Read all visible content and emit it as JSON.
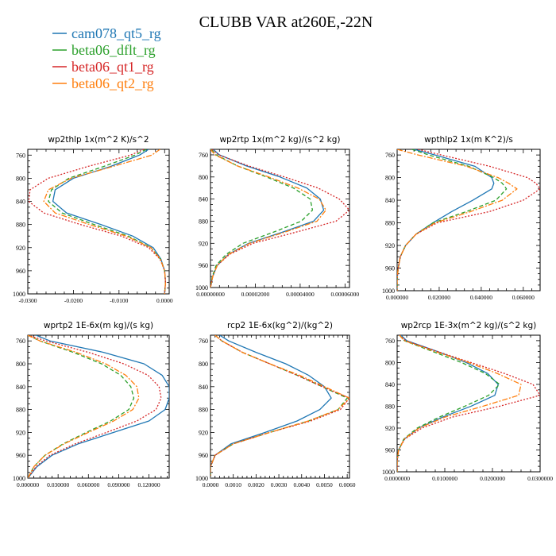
{
  "figure": {
    "title": "CLUBB VAR at260E,-22N",
    "legend": [
      {
        "name": "cam078_qt5_rg",
        "color": "#1f77b4",
        "dash": "solid"
      },
      {
        "name": "beta06_dflt_rg",
        "color": "#2ca02c",
        "dash": "dashed"
      },
      {
        "name": "beta06_qt1_rg",
        "color": "#d62728",
        "dash": "dotted"
      },
      {
        "name": "beta06_qt2_rg",
        "color": "#ff7f0e",
        "dash": "dashdot"
      }
    ]
  },
  "chart_data": [
    {
      "type": "line",
      "title": "wp2thlp   1x(m^2 K)/s^2",
      "xlim": [
        -0.03,
        0.001
      ],
      "ylim": [
        1000,
        750
      ],
      "xticks": [
        -0.03,
        -0.02,
        -0.01,
        0.0
      ],
      "xtick_labels": [
        "-0.0300",
        "-0.0200",
        "-0.0100",
        "0.0000"
      ],
      "yticks": [
        760,
        800,
        840,
        880,
        920,
        960,
        1000
      ],
      "ytick_labels": [
        "760",
        "800",
        "840",
        "880",
        "920",
        "960",
        "1000"
      ],
      "y": [
        750,
        760,
        780,
        800,
        820,
        840,
        860,
        880,
        900,
        920,
        940,
        960,
        980,
        1000
      ],
      "series": [
        {
          "values": [
            -0.0035,
            -0.0055,
            -0.012,
            -0.02,
            -0.024,
            -0.0245,
            -0.0215,
            -0.014,
            -0.007,
            -0.0025,
            -0.0008,
            0.0,
            0.0002,
            0.0
          ]
        },
        {
          "values": [
            -0.004,
            -0.0065,
            -0.0135,
            -0.021,
            -0.0248,
            -0.0255,
            -0.0225,
            -0.0155,
            -0.008,
            -0.003,
            -0.0009,
            0.0,
            0.0002,
            0.0
          ]
        },
        {
          "values": [
            -0.0045,
            -0.0075,
            -0.017,
            -0.0255,
            -0.0295,
            -0.0298,
            -0.0265,
            -0.0185,
            -0.0095,
            -0.0035,
            -0.001,
            0.0,
            0.0002,
            0.0
          ]
        },
        {
          "values": [
            -0.001,
            -0.0028,
            -0.0115,
            -0.0205,
            -0.0255,
            -0.0265,
            -0.024,
            -0.0165,
            -0.0085,
            -0.003,
            -0.0009,
            0.0,
            0.0002,
            0.0
          ]
        }
      ]
    },
    {
      "type": "line",
      "title": "wp2rtp   1x(m^2 kg)/(s^2 kg)",
      "xlim": [
        0.0,
        6.2e-05
      ],
      "ylim": [
        1000,
        750
      ],
      "xticks": [
        0.0,
        2e-05,
        4e-05,
        6e-05
      ],
      "xtick_labels": [
        "0.00000000",
        "0.00002000",
        "0.00004000",
        "0.00006000"
      ],
      "yticks": [
        760,
        800,
        840,
        880,
        920,
        960,
        1000
      ],
      "ytick_labels": [
        "760",
        "800",
        "840",
        "880",
        "920",
        "960",
        "1000"
      ],
      "y": [
        750,
        760,
        780,
        800,
        820,
        840,
        860,
        880,
        900,
        920,
        940,
        960,
        980,
        1000
      ],
      "series": [
        {
          "values": [
            1.2e-06,
            4e-06,
            1.6e-05,
            3.1e-05,
            4.3e-05,
            4.9e-05,
            5.05e-05,
            4.6e-05,
            3.2e-05,
            1.7e-05,
            8e-06,
            3e-06,
            1e-06,
            0.0
          ]
        },
        {
          "values": [
            5e-07,
            2.5e-06,
            1.2e-05,
            2.5e-05,
            3.7e-05,
            4.45e-05,
            4.55e-05,
            4.05e-05,
            2.8e-05,
            1.45e-05,
            7e-06,
            2.5e-06,
            8e-07,
            0.0
          ]
        },
        {
          "values": [
            8e-07,
            3.5e-06,
            1.7e-05,
            3.3e-05,
            4.8e-05,
            5.75e-05,
            6.2e-05,
            5.6e-05,
            3.8e-05,
            1.9e-05,
            8.5e-06,
            3e-06,
            1e-06,
            0.0
          ]
        },
        {
          "values": [
            0.0,
            2e-06,
            1.2e-05,
            2.6e-05,
            3.9e-05,
            4.85e-05,
            5.15e-05,
            4.75e-05,
            3.3e-05,
            1.75e-05,
            8e-06,
            3e-06,
            1e-06,
            0.0
          ]
        }
      ]
    },
    {
      "type": "line",
      "title": "wpthlp2   1x(m K^2)/s",
      "xlim": [
        0.0,
        0.068
      ],
      "ylim": [
        1000,
        750
      ],
      "xticks": [
        0.0,
        0.02,
        0.04,
        0.06
      ],
      "xtick_labels": [
        "0.000000",
        "0.020000",
        "0.040000",
        "0.060000"
      ],
      "yticks": [
        760,
        800,
        840,
        880,
        920,
        960,
        1000
      ],
      "ytick_labels": [
        "760",
        "800",
        "840",
        "880",
        "920",
        "960",
        "1000"
      ],
      "y": [
        750,
        760,
        780,
        800,
        810,
        820,
        840,
        860,
        880,
        900,
        920,
        940,
        960,
        980,
        1000
      ],
      "series": [
        {
          "values": [
            0.008,
            0.018,
            0.037,
            0.045,
            0.046,
            0.045,
            0.036,
            0.026,
            0.017,
            0.009,
            0.004,
            0.0015,
            0.0005,
            0.0,
            0.0
          ]
        },
        {
          "values": [
            0.007,
            0.015,
            0.034,
            0.046,
            0.05,
            0.052,
            0.047,
            0.033,
            0.017,
            0.009,
            0.004,
            0.0015,
            0.0005,
            0.0,
            0.0
          ]
        },
        {
          "values": [
            0.01,
            0.021,
            0.044,
            0.062,
            0.066,
            0.068,
            0.06,
            0.044,
            0.019,
            0.009,
            0.004,
            0.0015,
            0.0005,
            0.0,
            0.0
          ]
        },
        {
          "values": [
            0.0,
            0.01,
            0.033,
            0.048,
            0.053,
            0.057,
            0.05,
            0.035,
            0.018,
            0.009,
            0.004,
            0.0015,
            0.0005,
            0.0,
            0.0
          ]
        }
      ]
    },
    {
      "type": "line",
      "title": "wprtp2   1E-6x(m kg)/(s kg)",
      "xlim": [
        0.0,
        0.14
      ],
      "ylim": [
        1000,
        750
      ],
      "xticks": [
        0.0,
        0.03,
        0.06,
        0.09,
        0.12
      ],
      "xtick_labels": [
        "0.000000",
        "0.030000",
        "0.060000",
        "0.090000",
        "0.120000"
      ],
      "yticks": [
        760,
        800,
        840,
        880,
        920,
        960,
        1000
      ],
      "ytick_labels": [
        "760",
        "800",
        "840",
        "880",
        "920",
        "960",
        "1000"
      ],
      "y": [
        750,
        760,
        780,
        800,
        820,
        840,
        860,
        880,
        900,
        920,
        940,
        960,
        980,
        1000
      ],
      "series": [
        {
          "values": [
            0.008,
            0.022,
            0.075,
            0.115,
            0.133,
            0.14,
            0.14,
            0.136,
            0.12,
            0.085,
            0.05,
            0.024,
            0.009,
            0.0
          ]
        },
        {
          "values": [
            0.0,
            0.012,
            0.045,
            0.073,
            0.092,
            0.102,
            0.105,
            0.1,
            0.082,
            0.058,
            0.035,
            0.017,
            0.006,
            0.0
          ]
        },
        {
          "values": [
            0.0,
            0.018,
            0.06,
            0.095,
            0.119,
            0.13,
            0.132,
            0.127,
            0.108,
            0.078,
            0.047,
            0.022,
            0.008,
            0.0
          ]
        },
        {
          "values": [
            0.0,
            0.012,
            0.048,
            0.077,
            0.097,
            0.108,
            0.11,
            0.104,
            0.085,
            0.06,
            0.036,
            0.017,
            0.006,
            0.0
          ]
        }
      ]
    },
    {
      "type": "line",
      "title": "rcp2   1E-6x(kg^2)/(kg^2)",
      "xlim": [
        0.0,
        0.0061
      ],
      "ylim": [
        1000,
        750
      ],
      "xticks": [
        0.0,
        0.001,
        0.002,
        0.003,
        0.004,
        0.005,
        0.006
      ],
      "xtick_labels": [
        "0.0000",
        "0.0010",
        "0.0020",
        "0.0030",
        "0.0040",
        "0.0050",
        "0.0060"
      ],
      "yticks": [
        760,
        800,
        840,
        880,
        920,
        960,
        1000
      ],
      "ytick_labels": [
        "760",
        "800",
        "840",
        "880",
        "920",
        "960",
        "1000"
      ],
      "y": [
        750,
        760,
        780,
        800,
        820,
        840,
        860,
        880,
        900,
        920,
        940,
        960,
        980,
        1000
      ],
      "series": [
        {
          "values": [
            0.0004,
            0.0008,
            0.002,
            0.0033,
            0.0043,
            0.005,
            0.0053,
            0.0048,
            0.0038,
            0.0024,
            0.0009,
            0.0002,
            0.0,
            0.0
          ]
        },
        {
          "values": [
            0.0002,
            0.0005,
            0.0014,
            0.0026,
            0.0038,
            0.0049,
            0.006,
            0.0056,
            0.0043,
            0.0026,
            0.001,
            0.0002,
            0.0,
            0.0
          ]
        },
        {
          "values": [
            0.0002,
            0.0005,
            0.0014,
            0.0026,
            0.0038,
            0.0049,
            0.0061,
            0.0057,
            0.0044,
            0.0026,
            0.001,
            0.0002,
            0.0,
            0.0
          ]
        },
        {
          "values": [
            0.0002,
            0.0005,
            0.0014,
            0.0026,
            0.0039,
            0.005,
            0.0061,
            0.0056,
            0.0043,
            0.0026,
            0.001,
            0.0002,
            0.0,
            0.0
          ]
        }
      ]
    },
    {
      "type": "line",
      "title": "wp2rcp   1E-3x(m^2 kg)/(s^2 kg)",
      "xlim": [
        0.0,
        0.03
      ],
      "ylim": [
        1000,
        750
      ],
      "xticks": [
        0.0,
        0.01,
        0.02,
        0.03
      ],
      "xtick_labels": [
        "0.0000000",
        "0.0100000",
        "0.0200000",
        "0.0300000"
      ],
      "yticks": [
        760,
        800,
        840,
        880,
        920,
        960,
        1000
      ],
      "ytick_labels": [
        "760",
        "800",
        "840",
        "880",
        "920",
        "960",
        "1000"
      ],
      "y": [
        750,
        760,
        780,
        800,
        820,
        840,
        860,
        880,
        900,
        920,
        940,
        960,
        980,
        1000
      ],
      "series": [
        {
          "values": [
            0.0008,
            0.002,
            0.0085,
            0.0145,
            0.019,
            0.0212,
            0.0205,
            0.0155,
            0.0095,
            0.0045,
            0.0015,
            0.0003,
            0.0,
            0.0
          ]
        },
        {
          "values": [
            0.0005,
            0.0015,
            0.0075,
            0.0135,
            0.0185,
            0.0215,
            0.0192,
            0.0142,
            0.0088,
            0.0042,
            0.0014,
            0.0003,
            0.0,
            0.0
          ]
        },
        {
          "values": [
            0.0005,
            0.0018,
            0.0085,
            0.0155,
            0.0225,
            0.0285,
            0.03,
            0.0215,
            0.0115,
            0.0052,
            0.0016,
            0.0003,
            0.0,
            0.0
          ]
        },
        {
          "values": [
            0.0005,
            0.0015,
            0.008,
            0.015,
            0.021,
            0.026,
            0.0255,
            0.018,
            0.01,
            0.0046,
            0.0015,
            0.0003,
            0.0,
            0.0
          ]
        }
      ]
    }
  ]
}
